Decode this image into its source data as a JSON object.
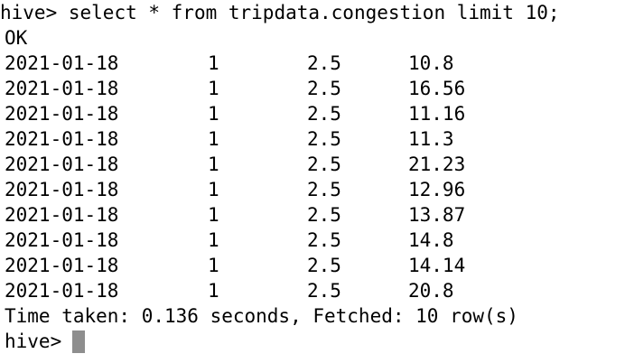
{
  "terminal": {
    "command_prompt": "hive>",
    "command_text": "select * from tripdata.congestion limit 10;",
    "status": "OK",
    "rows": [
      [
        "2021-01-18",
        "1",
        "2.5",
        "10.8"
      ],
      [
        "2021-01-18",
        "1",
        "2.5",
        "16.56"
      ],
      [
        "2021-01-18",
        "1",
        "2.5",
        "11.16"
      ],
      [
        "2021-01-18",
        "1",
        "2.5",
        "11.3"
      ],
      [
        "2021-01-18",
        "1",
        "2.5",
        "21.23"
      ],
      [
        "2021-01-18",
        "1",
        "2.5",
        "12.96"
      ],
      [
        "2021-01-18",
        "1",
        "2.5",
        "13.87"
      ],
      [
        "2021-01-18",
        "1",
        "2.5",
        "14.8"
      ],
      [
        "2021-01-18",
        "1",
        "2.5",
        "14.14"
      ],
      [
        "2021-01-18",
        "1",
        "2.5",
        "20.8"
      ]
    ],
    "summary": "Time taken: 0.136 seconds, Fetched: 10 row(s)",
    "final_prompt": "hive>"
  }
}
